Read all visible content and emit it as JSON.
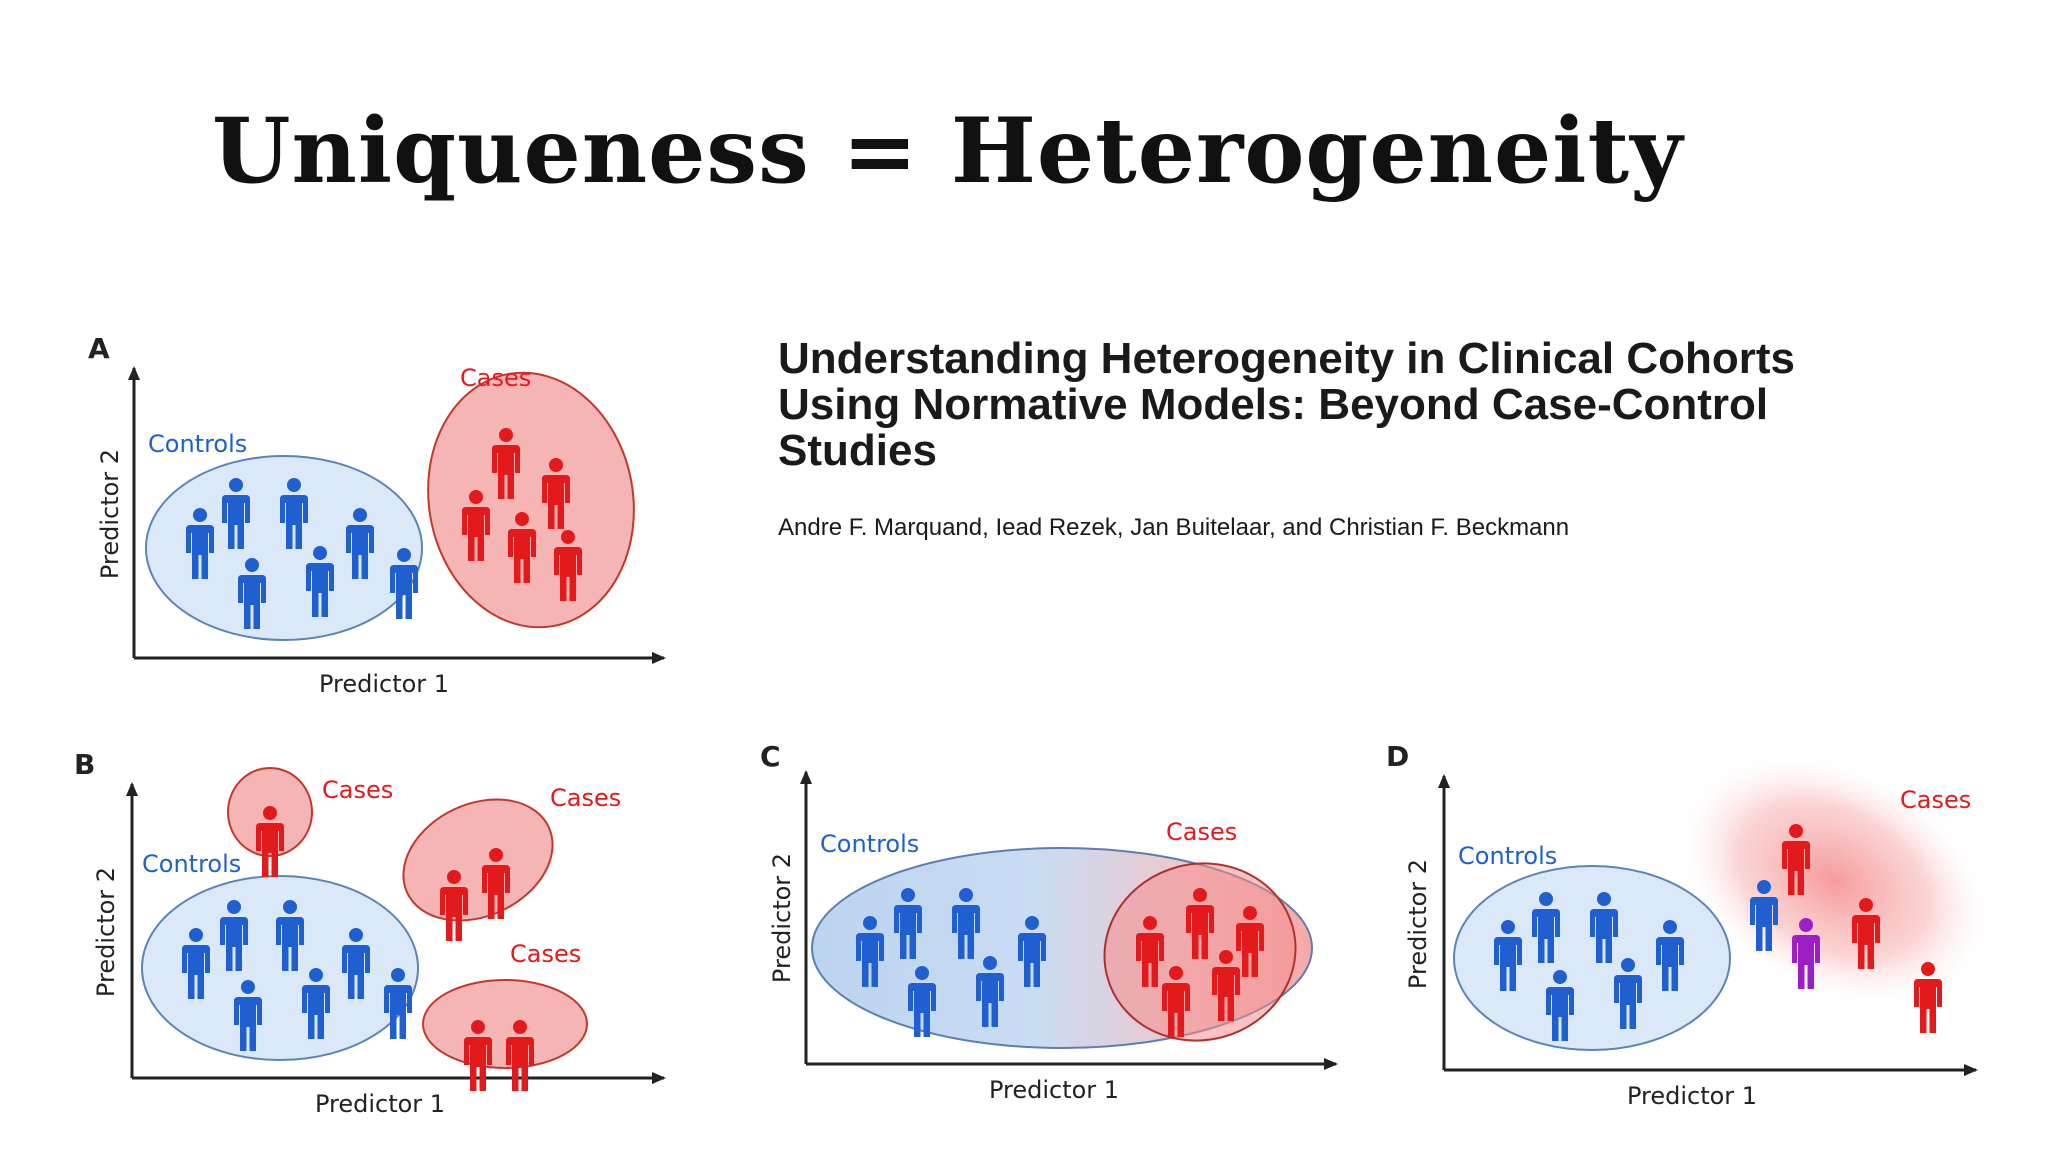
{
  "slide": {
    "title": "Uniqueness = Heterogeneity"
  },
  "paper": {
    "title_lines": [
      "Understanding Heterogeneity in Clinical Cohorts",
      "Using Normative Models: Beyond Case-Control",
      "Studies"
    ],
    "authors": "Andre F. Marquand, Iead Rezek, Jan Buitelaar, and Christian F. Beckmann"
  },
  "colors": {
    "control": "#1f5fd0",
    "case": "#e31a1c",
    "mixed": "#9b1fc4",
    "control_fill": "#dbe8f7",
    "case_fill": "#f6b5b5"
  },
  "panels": {
    "A": {
      "letter": "A",
      "xlabel": "Predictor 1",
      "ylabel": "Predictor 2",
      "controls_label": "Controls",
      "cases_label": "Cases"
    },
    "B": {
      "letter": "B",
      "xlabel": "Predictor 1",
      "ylabel": "Predictor 2",
      "controls_label": "Controls",
      "cases_labels": [
        "Cases",
        "Cases",
        "Cases"
      ]
    },
    "C": {
      "letter": "C",
      "xlabel": "Predictor 1",
      "ylabel": "Predictor 2",
      "controls_label": "Controls",
      "cases_label": "Cases"
    },
    "D": {
      "letter": "D",
      "xlabel": "Predictor 1",
      "ylabel": "Predictor 2",
      "controls_label": "Controls",
      "cases_label": "Cases"
    }
  }
}
